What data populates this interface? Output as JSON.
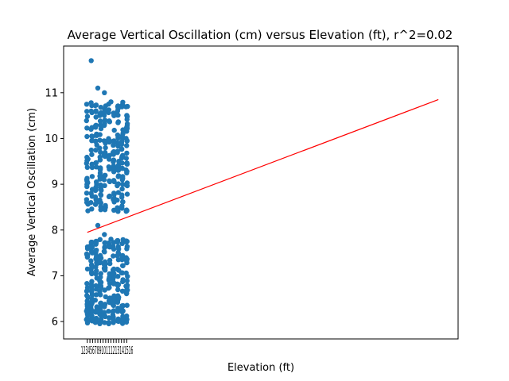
{
  "chart_data": {
    "type": "scatter",
    "title": "Average Vertical Oscillation (cm) versus Elevation (ft), r^2=0.02",
    "xlabel": "Elevation (ft)",
    "ylabel": "Average Vertical Oscillation (cm)",
    "ylim": [
      5.62,
      12.02
    ],
    "xlim": [
      0.0,
      1.0
    ],
    "y_ticks": [
      "6",
      "7",
      "8",
      "9",
      "10",
      "11"
    ],
    "x_tick_labels_overlapping": "12345678910111213141516",
    "x_cluster_range": [
      0.06,
      0.16
    ],
    "point_color": "#1f77b4",
    "trend_line": {
      "color": "#ff0000",
      "y_start": 7.95,
      "y_end": 10.85,
      "x_start": 0.06,
      "x_end": 0.95
    },
    "clusters": [
      {
        "name": "upper",
        "y_min": 8.4,
        "y_max": 10.8,
        "count": 260
      },
      {
        "name": "lower",
        "y_min": 5.95,
        "y_max": 7.8,
        "count": 280
      }
    ],
    "outliers_y": [
      11.7,
      11.1,
      11.0,
      10.8,
      10.6,
      10.6,
      8.1,
      7.9,
      7.8
    ]
  }
}
